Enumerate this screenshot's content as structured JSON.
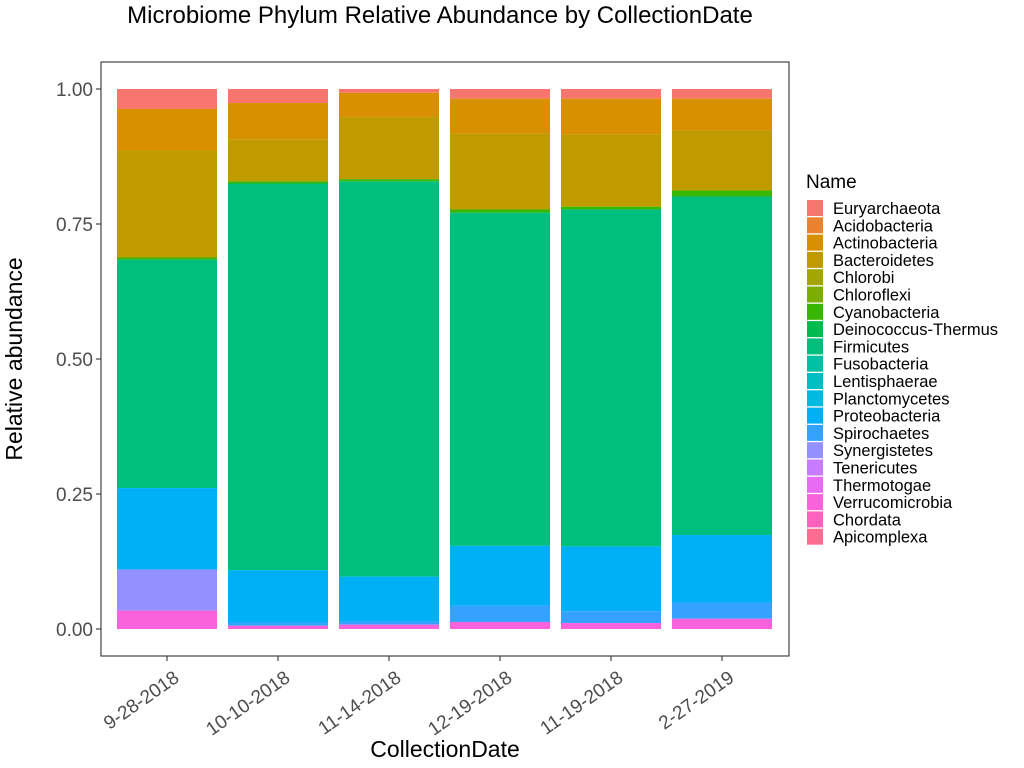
{
  "chart_data": {
    "type": "bar",
    "stacked": true,
    "title": "Microbiome Phylum Relative Abundance by CollectionDate",
    "xlabel": "CollectionDate",
    "ylabel": "Relative abundance",
    "ylim": [
      0,
      1
    ],
    "yticks": [
      "0.00",
      "0.25",
      "0.50",
      "0.75",
      "1.00"
    ],
    "ytick_values": [
      0,
      0.25,
      0.5,
      0.75,
      1.0
    ],
    "grid": false,
    "legend_placement": "right",
    "legend_title": "Name",
    "categories": [
      "9-28-2018",
      "10-10-2018",
      "11-14-2018",
      "12-19-2018",
      "11-19-2018",
      "2-27-2019"
    ],
    "series": [
      {
        "name": "Euryarchaeota",
        "color": "#F8766D",
        "values": [
          0.037,
          0.026,
          0.007,
          0.018,
          0.018,
          0.018
        ]
      },
      {
        "name": "Acidobacteria",
        "color": "#EA8331",
        "values": [
          0.0,
          0.0,
          0.0,
          0.0,
          0.0,
          0.0
        ]
      },
      {
        "name": "Actinobacteria",
        "color": "#D89000",
        "values": [
          0.077,
          0.067,
          0.045,
          0.065,
          0.066,
          0.059
        ]
      },
      {
        "name": "Bacteroidetes",
        "color": "#C09B00",
        "values": [
          0.198,
          0.078,
          0.115,
          0.14,
          0.134,
          0.111
        ]
      },
      {
        "name": "Chlorobi",
        "color": "#A3A500",
        "values": [
          0.0,
          0.0,
          0.0,
          0.0,
          0.0,
          0.0
        ]
      },
      {
        "name": "Chloroflexi",
        "color": "#7CAE00",
        "values": [
          0.0,
          0.0,
          0.0,
          0.0,
          0.0,
          0.0
        ]
      },
      {
        "name": "Cyanobacteria",
        "color": "#39B600",
        "values": [
          0.004,
          0.004,
          0.004,
          0.006,
          0.005,
          0.011
        ]
      },
      {
        "name": "Deinococcus-Thermus",
        "color": "#00BB4E",
        "values": [
          0.0,
          0.0,
          0.0,
          0.0,
          0.0,
          0.0
        ]
      },
      {
        "name": "Firmicutes",
        "color": "#00BF7D",
        "values": [
          0.423,
          0.716,
          0.732,
          0.617,
          0.624,
          0.627
        ]
      },
      {
        "name": "Fusobacteria",
        "color": "#00C1A3",
        "values": [
          0.0,
          0.0,
          0.0,
          0.0,
          0.0,
          0.0
        ]
      },
      {
        "name": "Lentisphaerae",
        "color": "#00BFC4",
        "values": [
          0.0,
          0.0,
          0.0,
          0.0,
          0.0,
          0.0
        ]
      },
      {
        "name": "Planctomycetes",
        "color": "#00BAE0",
        "values": [
          0.0,
          0.0,
          0.0,
          0.0,
          0.0,
          0.0
        ]
      },
      {
        "name": "Proteobacteria",
        "color": "#00B0F6",
        "values": [
          0.151,
          0.097,
          0.083,
          0.111,
          0.12,
          0.125
        ]
      },
      {
        "name": "Spirochaetes",
        "color": "#35A2FF",
        "values": [
          0.0,
          0.006,
          0.006,
          0.03,
          0.022,
          0.03
        ]
      },
      {
        "name": "Synergistetes",
        "color": "#9590FF",
        "values": [
          0.076,
          0.0,
          0.0,
          0.0,
          0.0,
          0.0
        ]
      },
      {
        "name": "Tenericutes",
        "color": "#C77CFF",
        "values": [
          0.0,
          0.0,
          0.0,
          0.0,
          0.0,
          0.0
        ]
      },
      {
        "name": "Thermotogae",
        "color": "#E76BF3",
        "values": [
          0.0,
          0.0,
          0.0,
          0.0,
          0.0,
          0.0
        ]
      },
      {
        "name": "Verrucomicrobia",
        "color": "#FA62DB",
        "values": [
          0.034,
          0.006,
          0.008,
          0.013,
          0.011,
          0.019
        ]
      },
      {
        "name": "Chordata",
        "color": "#FF62BC",
        "values": [
          0.0,
          0.0,
          0.0,
          0.0,
          0.0,
          0.0
        ]
      },
      {
        "name": "Apicomplexa",
        "color": "#FF6C91",
        "values": [
          0.0,
          0.0,
          0.0,
          0.0,
          0.0,
          0.0
        ]
      }
    ]
  }
}
